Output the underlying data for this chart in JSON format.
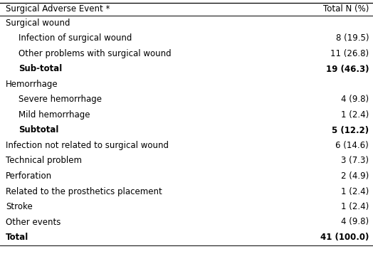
{
  "title_col1": "Surgical Adverse Event *",
  "title_col2": "Total N (%)",
  "rows": [
    {
      "label": "Surgical wound",
      "value": "",
      "indent": 0,
      "bold": false,
      "category": true
    },
    {
      "label": "Infection of surgical wound",
      "value": "8 (19.5)",
      "indent": 1,
      "bold": false,
      "category": false
    },
    {
      "label": "Other problems with surgical wound",
      "value": "11 (26.8)",
      "indent": 1,
      "bold": false,
      "category": false
    },
    {
      "label": "Sub-total",
      "value": "19 (46.3)",
      "indent": 1,
      "bold": true,
      "category": false
    },
    {
      "label": "Hemorrhage",
      "value": "",
      "indent": 0,
      "bold": false,
      "category": true
    },
    {
      "label": "Severe hemorrhage",
      "value": "4 (9.8)",
      "indent": 1,
      "bold": false,
      "category": false
    },
    {
      "label": "Mild hemorrhage",
      "value": "1 (2.4)",
      "indent": 1,
      "bold": false,
      "category": false
    },
    {
      "label": "Subtotal",
      "value": "5 (12.2)",
      "indent": 1,
      "bold": true,
      "category": false
    },
    {
      "label": "Infection not related to surgical wound",
      "value": "6 (14.6)",
      "indent": 0,
      "bold": false,
      "category": false
    },
    {
      "label": "Technical problem",
      "value": "3 (7.3)",
      "indent": 0,
      "bold": false,
      "category": false
    },
    {
      "label": "Perforation",
      "value": "2 (4.9)",
      "indent": 0,
      "bold": false,
      "category": false
    },
    {
      "label": "Related to the prosthetics placement",
      "value": "1 (2.4)",
      "indent": 0,
      "bold": false,
      "category": false
    },
    {
      "label": "Stroke",
      "value": "1 (2.4)",
      "indent": 0,
      "bold": false,
      "category": false
    },
    {
      "label": "Other events",
      "value": "4 (9.8)",
      "indent": 0,
      "bold": false,
      "category": false
    },
    {
      "label": "Total",
      "value": "41 (100.0)",
      "indent": 0,
      "bold": true,
      "category": false
    }
  ],
  "header_line_color": "#000000",
  "text_color": "#000000",
  "bg_color": "#ffffff",
  "font_size": 8.5,
  "header_font_size": 8.5,
  "fig_width": 5.24,
  "fig_height": 3.57,
  "dpi": 100
}
